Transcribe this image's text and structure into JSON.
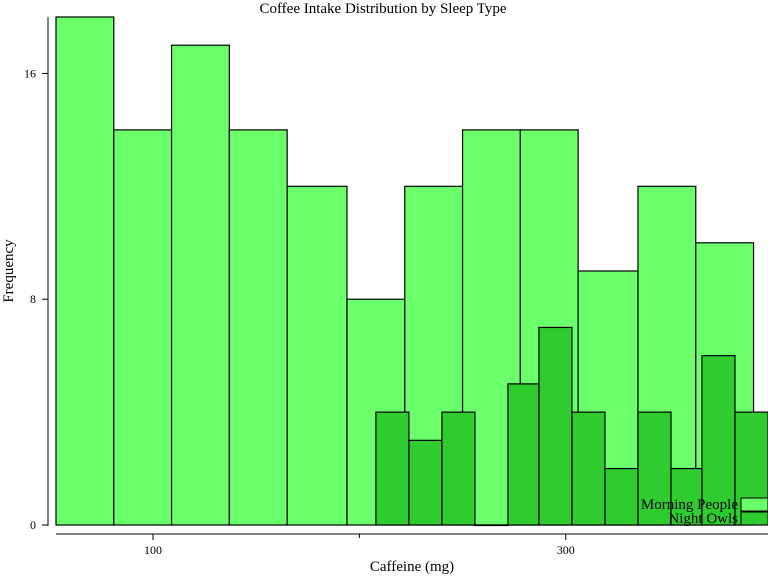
{
  "chart_data": {
    "type": "bar",
    "title": "Coffee Intake Distribution by Sleep Type",
    "xlabel": "Caffeine (mg)",
    "ylabel": "Frequency",
    "xlim": [
      53,
      398
    ],
    "ylim": [
      0,
      18
    ],
    "x_ticks": [
      100,
      300
    ],
    "x_minor_ticks": [
      200
    ],
    "y_ticks": [
      0,
      8,
      16
    ],
    "legend_position": "bottom-right",
    "series": [
      {
        "name": "Morning People",
        "color": "#6cff6c",
        "bins": [
          {
            "x0": 53,
            "x1": 81,
            "count": 18
          },
          {
            "x0": 81,
            "x1": 109,
            "count": 14
          },
          {
            "x0": 109,
            "x1": 137,
            "count": 17
          },
          {
            "x0": 137,
            "x1": 165,
            "count": 14
          },
          {
            "x0": 165,
            "x1": 194,
            "count": 12
          },
          {
            "x0": 194,
            "x1": 222,
            "count": 8
          },
          {
            "x0": 222,
            "x1": 250,
            "count": 12
          },
          {
            "x0": 250,
            "x1": 278,
            "count": 14
          },
          {
            "x0": 278,
            "x1": 306,
            "count": 14
          },
          {
            "x0": 306,
            "x1": 335,
            "count": 9
          },
          {
            "x0": 335,
            "x1": 363,
            "count": 12
          },
          {
            "x0": 363,
            "x1": 391,
            "count": 10
          }
        ]
      },
      {
        "name": "Night Owls",
        "color": "#2ecc2e",
        "bins": [
          {
            "x0": 208,
            "x1": 224,
            "count": 4
          },
          {
            "x0": 224,
            "x1": 240,
            "count": 3
          },
          {
            "x0": 240,
            "x1": 256,
            "count": 4
          },
          {
            "x0": 256,
            "x1": 272,
            "count": 0
          },
          {
            "x0": 272,
            "x1": 287,
            "count": 5
          },
          {
            "x0": 287,
            "x1": 303,
            "count": 7
          },
          {
            "x0": 303,
            "x1": 319,
            "count": 4
          },
          {
            "x0": 319,
            "x1": 335,
            "count": 2
          },
          {
            "x0": 335,
            "x1": 351,
            "count": 4
          },
          {
            "x0": 351,
            "x1": 366,
            "count": 2
          },
          {
            "x0": 366,
            "x1": 382,
            "count": 6
          },
          {
            "x0": 382,
            "x1": 398,
            "count": 4
          }
        ]
      }
    ]
  }
}
